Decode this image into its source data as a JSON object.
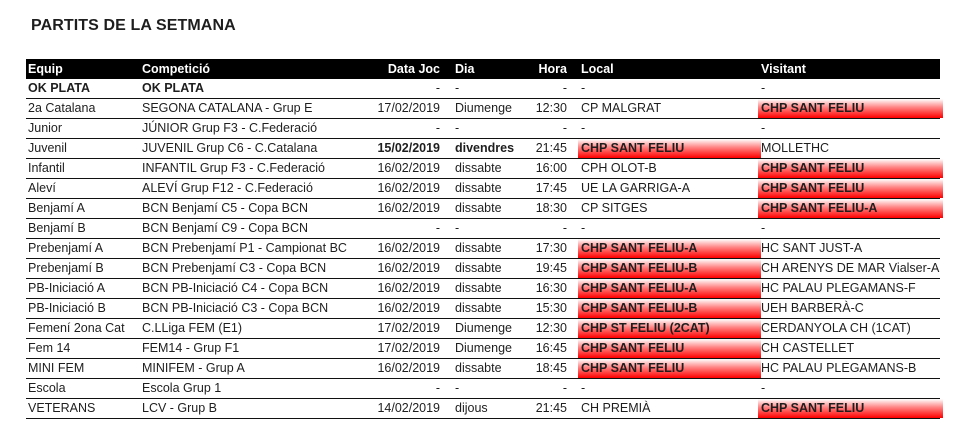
{
  "title": "PARTITS DE LA SETMANA",
  "highlight_color": "#ff0000",
  "columns": [
    "Equip",
    "Competició",
    "Data Joc",
    "Dia",
    "Hora",
    "Local",
    "Visitant"
  ],
  "rows": [
    {
      "equip": "OK PLATA",
      "competicio": "OK PLATA",
      "data": "-",
      "dia": "-",
      "hora": "-",
      "local": "-",
      "visitant": "-",
      "bold": [
        "equip",
        "competicio"
      ]
    },
    {
      "equip": "2a Catalana",
      "competicio": "SEGONA CATALANA - Grup E",
      "data": "17/02/2019",
      "dia": "Diumenge",
      "hora": "12:30",
      "local": "CP MALGRAT",
      "visitant": "CHP SANT FELIU",
      "highlight": "visitant"
    },
    {
      "equip": "Junior",
      "competicio": "JÚNIOR Grup F3 - C.Federació",
      "data": "-",
      "dia": "-",
      "hora": "-",
      "local": "-",
      "visitant": "-"
    },
    {
      "equip": "Juvenil",
      "competicio": "JUVENIL Grup C6 - C.Catalana",
      "data": "15/02/2019",
      "dia": "divendres",
      "hora": "21:45",
      "local": "CHP SANT FELIU",
      "visitant": "MOLLETHC",
      "highlight": "local",
      "bold": [
        "data",
        "dia"
      ]
    },
    {
      "equip": "Infantil",
      "competicio": "INFANTIL Grup F3 - C.Federació",
      "data": "16/02/2019",
      "dia": "dissabte",
      "hora": "16:00",
      "local": "CPH OLOT-B",
      "visitant": "CHP SANT FELIU",
      "highlight": "visitant"
    },
    {
      "equip": "Aleví",
      "competicio": "ALEVÍ Grup F12 - C.Federació",
      "data": "16/02/2019",
      "dia": "dissabte",
      "hora": "17:45",
      "local": "UE LA GARRIGA-A",
      "visitant": "CHP SANT FELIU",
      "highlight": "visitant"
    },
    {
      "equip": "Benjamí A",
      "competicio": "BCN Benjamí C5 - Copa BCN",
      "data": "16/02/2019",
      "dia": "dissabte",
      "hora": "18:30",
      "local": "CP SITGES",
      "visitant": "CHP SANT FELIU-A",
      "highlight": "visitant"
    },
    {
      "equip": "Benjamí B",
      "competicio": "BCN Benjamí C9 - Copa BCN",
      "data": "-",
      "dia": "-",
      "hora": "-",
      "local": "-",
      "visitant": "-"
    },
    {
      "equip": "Prebenjamí A",
      "competicio": "BCN Prebenjamí P1 - Campionat BC",
      "data": "16/02/2019",
      "dia": "dissabte",
      "hora": "17:30",
      "local": "CHP SANT FELIU-A",
      "visitant": "HC SANT JUST-A",
      "highlight": "local"
    },
    {
      "equip": "Prebenjamí B",
      "competicio": "BCN Prebenjamí C3 - Copa BCN",
      "data": "16/02/2019",
      "dia": "dissabte",
      "hora": "19:45",
      "local": "CHP SANT FELIU-B",
      "visitant": "CH ARENYS DE MAR Vialser-A",
      "highlight": "local"
    },
    {
      "equip": "PB-Iniciació A",
      "competicio": "BCN PB-Iniciació C4 - Copa BCN",
      "data": "16/02/2019",
      "dia": "dissabte",
      "hora": "16:30",
      "local": "CHP SANT FELIU-A",
      "visitant": "HC PALAU PLEGAMANS-F",
      "highlight": "local"
    },
    {
      "equip": "PB-Iniciació B",
      "competicio": "BCN PB-Iniciació C3 - Copa BCN",
      "data": "16/02/2019",
      "dia": "dissabte",
      "hora": "15:30",
      "local": "CHP SANT FELIU-B",
      "visitant": "UEH BARBERÀ-C",
      "highlight": "local"
    },
    {
      "equip": "Femení 2ona Cat",
      "competicio": "C.LLiga FEM (E1)",
      "data": "17/02/2019",
      "dia": "Diumenge",
      "hora": "12:30",
      "local": "CHP ST FELIU (2CAT)",
      "visitant": "CERDANYOLA CH (1CAT)",
      "highlight": "local"
    },
    {
      "equip": "Fem 14",
      "competicio": "FEM14 - Grup F1",
      "data": "17/02/2019",
      "dia": "Diumenge",
      "hora": "16:45",
      "local": "CHP SANT FELIU",
      "visitant": "CH CASTELLET",
      "highlight": "local"
    },
    {
      "equip": "MINI FEM",
      "competicio": "MINIFEM - Grup A",
      "data": "16/02/2019",
      "dia": "dissabte",
      "hora": "18:45",
      "local": "CHP SANT FELIU",
      "visitant": "HC PALAU PLEGAMANS-B",
      "highlight": "local"
    },
    {
      "equip": "Escola",
      "competicio": "Escola Grup 1",
      "data": "-",
      "dia": "-",
      "hora": "-",
      "local": "-",
      "visitant": "-"
    },
    {
      "equip": "VETERANS",
      "competicio": "LCV - Grup B",
      "data": "14/02/2019",
      "dia": "dijous",
      "hora": "21:45",
      "local": "CH PREMIÀ",
      "visitant": "CHP SANT FELIU",
      "highlight": "visitant"
    }
  ]
}
